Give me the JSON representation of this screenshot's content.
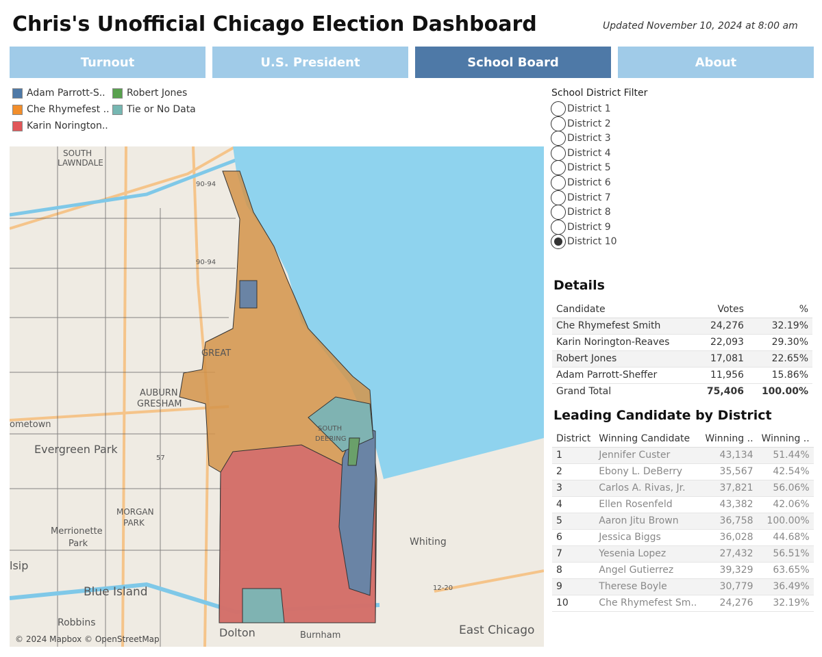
{
  "header": {
    "title": "Chris's Unofficial Chicago Election Dashboard",
    "updated": "Updated November 10, 2024 at 8:00 am"
  },
  "tabs": {
    "items": [
      "Turnout",
      "U.S. President",
      "School Board",
      "About"
    ],
    "active": 2
  },
  "legend": {
    "items": [
      {
        "name": "Adam Parrott-S..",
        "color": "#4e79a7"
      },
      {
        "name": "Robert Jones",
        "color": "#59a14f"
      },
      {
        "name": "Che Rhymefest ..",
        "color": "#f28e2b"
      },
      {
        "name": "Tie or No Data",
        "color": "#76b7b2"
      },
      {
        "name": "Karin Norington..",
        "color": "#e15759"
      }
    ]
  },
  "map": {
    "labels": [
      "SOUTH",
      "LAWNDALE",
      "90-94",
      "90-94",
      "GREAT",
      "AUBURN",
      "GRESHAM",
      "ometown",
      "Evergreen Park",
      "57",
      "MORGAN",
      "PARK",
      "Merrionette",
      "Park",
      "lsip",
      "Blue Island",
      "Robbins",
      "Dolton",
      "Burnham",
      "Whiting",
      "12-20",
      "East Chicago",
      "SOUTH",
      "DEERING"
    ],
    "attribution": "© 2024 Mapbox © OpenStreetMap"
  },
  "filter": {
    "title": "School District Filter",
    "options": [
      "District 1",
      "District 2",
      "District 3",
      "District 4",
      "District 5",
      "District 6",
      "District 7",
      "District 8",
      "District 9",
      "District 10"
    ],
    "selected": 9
  },
  "details": {
    "title": "Details",
    "columns": [
      "Candidate",
      "Votes",
      "%"
    ],
    "rows": [
      [
        "Che Rhymefest Smith",
        "24,276",
        "32.19%"
      ],
      [
        "Karin Norington-Reaves",
        "22,093",
        "29.30%"
      ],
      [
        "Robert Jones",
        "17,081",
        "22.65%"
      ],
      [
        "Adam Parrott-Sheffer",
        "11,956",
        "15.86%"
      ]
    ],
    "total": [
      "Grand Total",
      "75,406",
      "100.00%"
    ]
  },
  "leading": {
    "title": "Leading Candidate by District",
    "columns": [
      "District",
      "Winning Candidate",
      "Winning ..",
      "Winning .."
    ],
    "rows": [
      [
        "1",
        "Jennifer Custer",
        "43,134",
        "51.44%"
      ],
      [
        "2",
        "Ebony L. DeBerry",
        "35,567",
        "42.54%"
      ],
      [
        "3",
        "Carlos A. Rivas, Jr.",
        "37,821",
        "56.06%"
      ],
      [
        "4",
        "Ellen Rosenfeld",
        "43,382",
        "42.06%"
      ],
      [
        "5",
        "Aaron Jitu Brown",
        "36,758",
        "100.00%"
      ],
      [
        "6",
        "Jessica Biggs",
        "36,028",
        "44.68%"
      ],
      [
        "7",
        "Yesenia Lopez",
        "27,432",
        "56.51%"
      ],
      [
        "8",
        "Angel Gutierrez",
        "39,329",
        "63.65%"
      ],
      [
        "9",
        "Therese Boyle",
        "30,779",
        "36.49%"
      ],
      [
        "10",
        "Che Rhymefest Sm..",
        "24,276",
        "32.19%"
      ]
    ]
  }
}
